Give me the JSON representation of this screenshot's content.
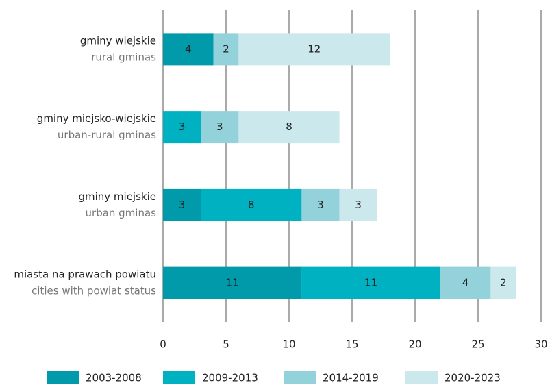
{
  "chart_data": {
    "type": "stacked_barh",
    "categories": [
      "gminy wiejskie",
      "gminy miejsko-wiejskie",
      "gminy miejskie",
      "miasta na prawach powiatu"
    ],
    "categories_en": [
      "rural gminas",
      "urban-rural gminas",
      "urban gminas",
      "cities with powiat status"
    ],
    "series": [
      {
        "name": "2003-2008",
        "color": "#009aab",
        "values": [
          4,
          null,
          3,
          11
        ]
      },
      {
        "name": "2009-2013",
        "color": "#00b1c2",
        "values": [
          null,
          3,
          8,
          11
        ]
      },
      {
        "name": "2014-2019",
        "color": "#94d2db",
        "values": [
          2,
          3,
          3,
          4
        ]
      },
      {
        "name": "2020-2023",
        "color": "#cbe8ed",
        "values": [
          12,
          8,
          3,
          2
        ]
      }
    ],
    "xlim": [
      0,
      30
    ],
    "xticks": [
      0,
      5,
      10,
      15,
      20,
      25,
      30
    ],
    "grid": true,
    "legend": "bottom"
  }
}
